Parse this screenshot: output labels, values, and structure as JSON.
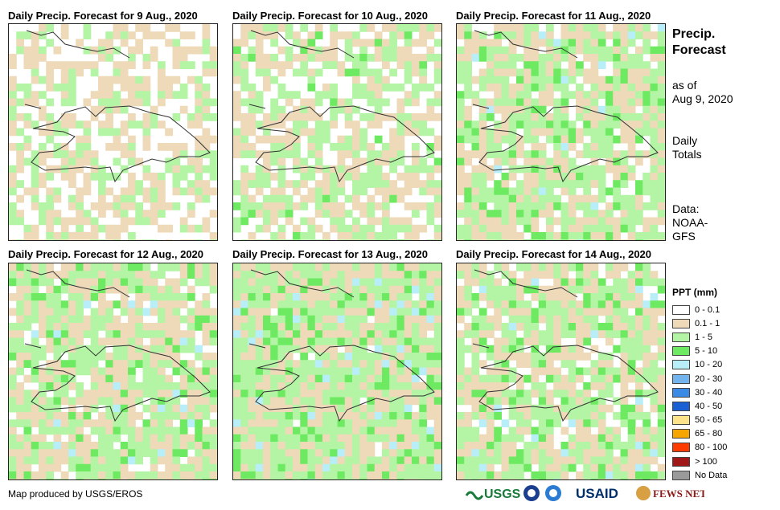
{
  "panels": [
    {
      "title": "Daily Precip. Forecast for 9 Aug., 2020",
      "seed": 11,
      "bias": 0
    },
    {
      "title": "Daily Precip. Forecast for 10 Aug., 2020",
      "seed": 23,
      "bias": 1
    },
    {
      "title": "Daily Precip. Forecast for 11 Aug., 2020",
      "seed": 37,
      "bias": 2
    },
    {
      "title": "Daily Precip. Forecast for 12 Aug., 2020",
      "seed": 41,
      "bias": 2
    },
    {
      "title": "Daily Precip. Forecast for 13 Aug., 2020",
      "seed": 53,
      "bias": 3
    },
    {
      "title": "Daily Precip. Forecast for 14 Aug., 2020",
      "seed": 67,
      "bias": 2
    }
  ],
  "side": {
    "title_line1": "Precip.",
    "title_line2": "Forecast",
    "asof_line1": "as of",
    "asof_line2": "Aug 9, 2020",
    "totals_line1": "Daily",
    "totals_line2": "Totals",
    "data_line1": "Data:",
    "data_line2": "NOAA-",
    "data_line3": "GFS"
  },
  "legend": {
    "title": "PPT (mm)",
    "items": [
      {
        "label": "0 - 0.1",
        "color": "#ffffff"
      },
      {
        "label": "0.1 - 1",
        "color": "#eed9b9"
      },
      {
        "label": "1 - 5",
        "color": "#b3f5a5"
      },
      {
        "label": "5 - 10",
        "color": "#6eea62"
      },
      {
        "label": "10 - 20",
        "color": "#b7eef8"
      },
      {
        "label": "20 - 30",
        "color": "#74b4ee"
      },
      {
        "label": "30 - 40",
        "color": "#3a8ae6"
      },
      {
        "label": "40 - 50",
        "color": "#1a5fd4"
      },
      {
        "label": "50 - 65",
        "color": "#fde48a"
      },
      {
        "label": "65 - 80",
        "color": "#f7a500"
      },
      {
        "label": "80 - 100",
        "color": "#ff3c00"
      },
      {
        "label": "> 100",
        "color": "#a01818"
      },
      {
        "label": "No Data",
        "color": "#9a9a9a"
      }
    ]
  },
  "credit": "Map produced by USGS/EROS",
  "logos": {
    "usgs": "USGS",
    "usaid": "USAID",
    "fewsnet": "FEWS NET"
  }
}
